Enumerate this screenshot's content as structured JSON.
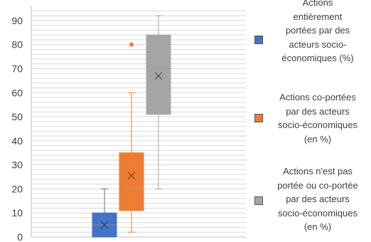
{
  "chart_data": {
    "type": "box",
    "title": "",
    "xlabel": "",
    "ylabel": "",
    "ylim": [
      0,
      95
    ],
    "yticks": [
      0,
      10,
      20,
      30,
      40,
      50,
      60,
      70,
      80,
      90
    ],
    "grid": true,
    "legend_position": "right",
    "series": [
      {
        "name": "Actions\nentièrement\nportées par des\nacteurs socio-\néconomiques (%)",
        "color": "#4472C4",
        "min": 0,
        "q1": 0,
        "median": 5,
        "q3": 10,
        "max": 20,
        "mean": 5,
        "outliers": []
      },
      {
        "name": "Actions co-portées\npar des acteurs\nsocio-économiques\n(en %)",
        "color": "#ED7D31",
        "min": 2,
        "q1": 11,
        "median": 20,
        "q3": 35,
        "max": 60,
        "mean": 25.5,
        "outliers": [
          80
        ]
      },
      {
        "name": "Actions n'est pas\nportée ou co-portée\npar des acteurs\nsocio-économiques\n(en %)",
        "color": "#A5A5A5",
        "min": 20,
        "q1": 51,
        "median": 70,
        "q3": 84,
        "max": 92,
        "mean": 67,
        "outliers": []
      }
    ]
  }
}
